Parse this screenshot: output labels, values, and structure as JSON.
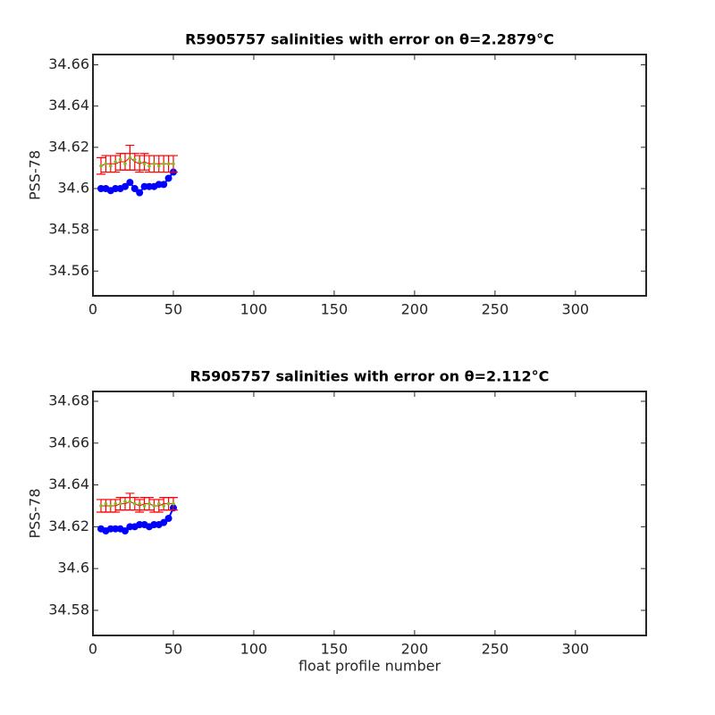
{
  "chart_data": [
    {
      "type": "errorbar",
      "title": "R5905757 salinities with error on θ=2.2879°C",
      "ylabel": "PSS-78",
      "x": [
        5,
        8,
        11,
        14,
        17,
        20,
        23,
        26,
        29,
        32,
        35,
        38,
        41,
        44,
        47,
        50
      ],
      "series": [
        {
          "color": "#0000ff",
          "style": "line-marker",
          "values": [
            34.6,
            34.6,
            34.599,
            34.6,
            34.6,
            34.601,
            34.603,
            34.6,
            34.598,
            34.601,
            34.601,
            34.601,
            34.602,
            34.602,
            34.605,
            34.608
          ]
        },
        {
          "color": "#ff0000",
          "style": "errorbar",
          "values": [
            34.611,
            34.612,
            34.612,
            34.612,
            34.613,
            34.613,
            34.615,
            34.613,
            34.612,
            34.613,
            34.612,
            34.612,
            34.612,
            34.612,
            34.612,
            34.612
          ],
          "errors": [
            0.004,
            0.004,
            0.004,
            0.004,
            0.004,
            0.004,
            0.006,
            0.004,
            0.004,
            0.004,
            0.004,
            0.004,
            0.004,
            0.004,
            0.004,
            0.004
          ]
        },
        {
          "color": "#7cbf1a",
          "style": "marker",
          "values": [
            34.611,
            34.612,
            34.611,
            34.613,
            34.614,
            34.612,
            34.615,
            34.614,
            34.613,
            34.612,
            34.611,
            34.612,
            34.611,
            34.612,
            34.612,
            34.612
          ]
        }
      ],
      "xlim": [
        0,
        344
      ],
      "xticks": [
        0,
        50,
        100,
        150,
        200,
        250,
        300
      ],
      "ylim": [
        34.548,
        34.665
      ],
      "yticks": [
        34.56,
        34.58,
        34.6,
        34.62,
        34.64,
        34.66
      ]
    },
    {
      "type": "errorbar",
      "title": "R5905757 salinities with error on θ=2.112°C",
      "ylabel": "PSS-78",
      "xlabel": "float profile number",
      "x": [
        5,
        8,
        11,
        14,
        17,
        20,
        23,
        26,
        29,
        32,
        35,
        38,
        41,
        44,
        47,
        50
      ],
      "series": [
        {
          "color": "#0000ff",
          "style": "line-marker",
          "values": [
            34.619,
            34.618,
            34.619,
            34.619,
            34.619,
            34.618,
            34.62,
            34.62,
            34.621,
            34.621,
            34.62,
            34.621,
            34.621,
            34.622,
            34.624,
            34.629
          ]
        },
        {
          "color": "#ff0000",
          "style": "errorbar",
          "values": [
            34.63,
            34.63,
            34.63,
            34.63,
            34.631,
            34.631,
            34.632,
            34.631,
            34.63,
            34.631,
            34.631,
            34.63,
            34.63,
            34.631,
            34.631,
            34.631
          ],
          "errors": [
            0.003,
            0.003,
            0.003,
            0.003,
            0.003,
            0.003,
            0.004,
            0.003,
            0.003,
            0.003,
            0.003,
            0.003,
            0.003,
            0.003,
            0.003,
            0.003
          ]
        },
        {
          "color": "#7cbf1a",
          "style": "marker",
          "values": [
            34.63,
            34.631,
            34.63,
            34.631,
            34.631,
            34.632,
            34.632,
            34.631,
            34.631,
            34.63,
            34.631,
            34.63,
            34.631,
            34.63,
            34.631,
            34.631
          ]
        }
      ],
      "xlim": [
        0,
        344
      ],
      "xticks": [
        0,
        50,
        100,
        150,
        200,
        250,
        300
      ],
      "ylim": [
        34.568,
        34.6847
      ],
      "yticks": [
        34.58,
        34.6,
        34.62,
        34.64,
        34.66,
        34.68
      ]
    }
  ]
}
